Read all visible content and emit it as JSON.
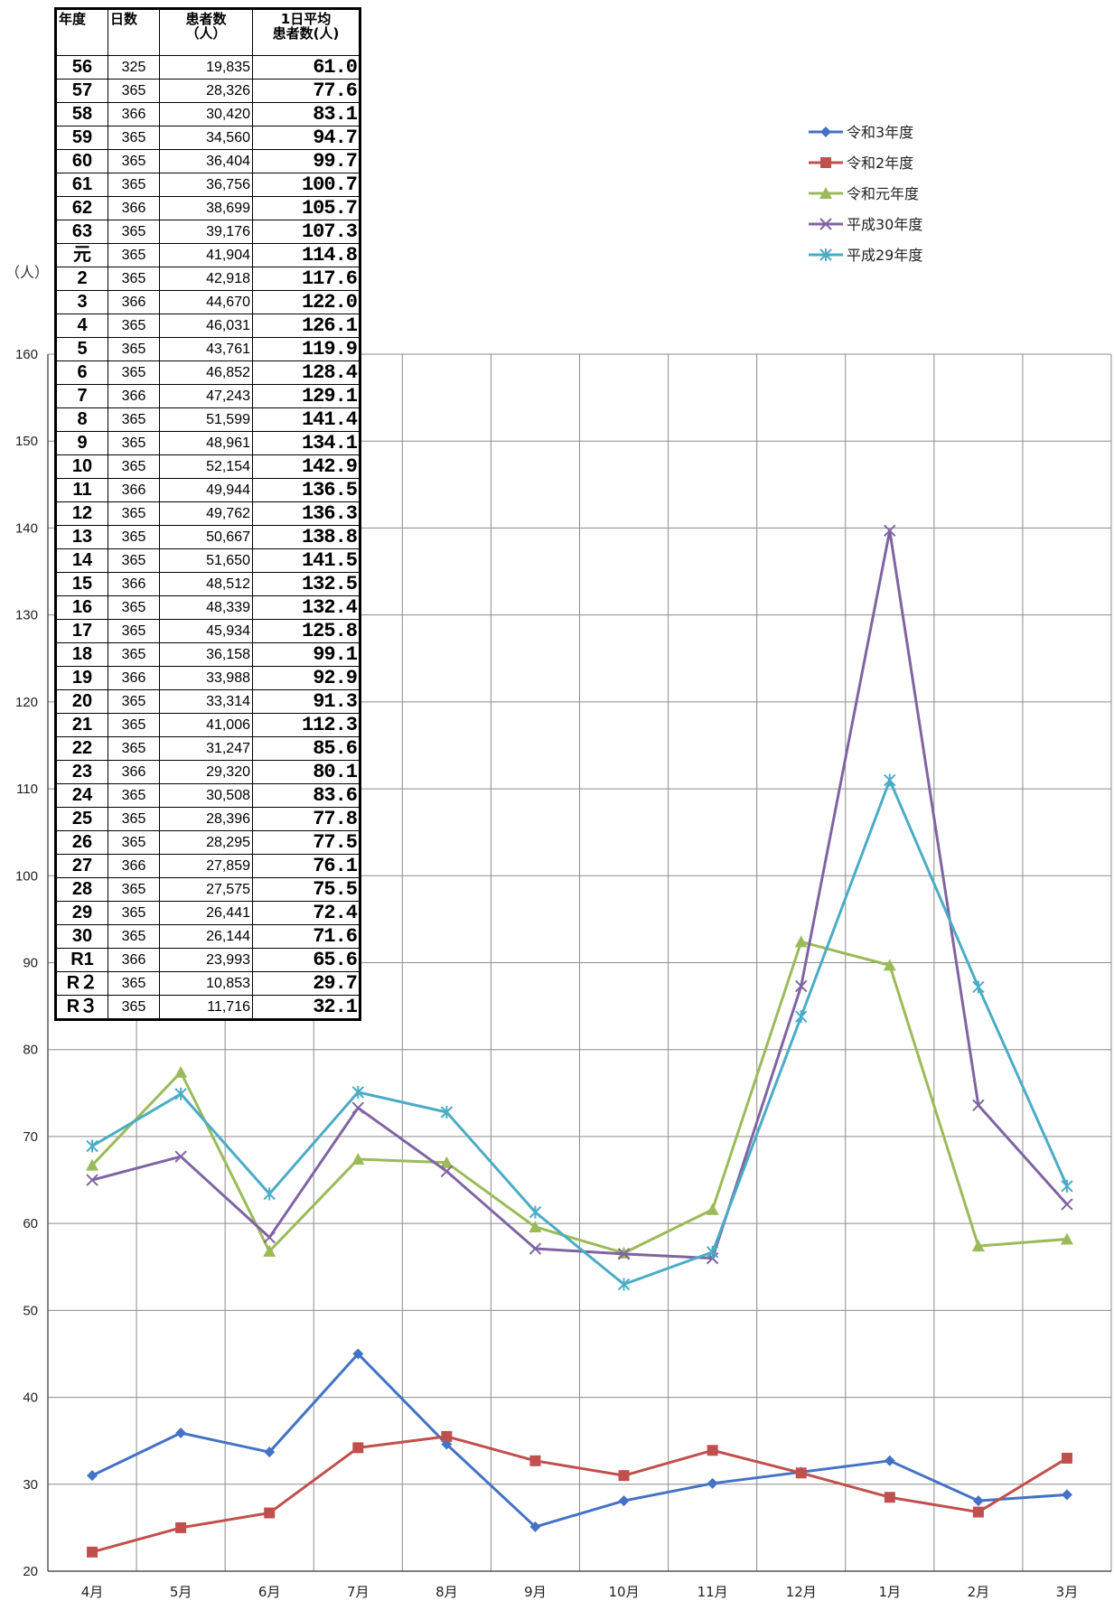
{
  "table": {
    "headers": {
      "year": "年度",
      "days": "日数",
      "patients_l1": "患者数",
      "patients_l2": "（人）",
      "avg_l1": "1日平均",
      "avg_l2": "患者数(人)"
    },
    "rows": [
      {
        "year": "56",
        "days": "325",
        "patients": "19,835",
        "avg": "61.0"
      },
      {
        "year": "57",
        "days": "365",
        "patients": "28,326",
        "avg": "77.6"
      },
      {
        "year": "58",
        "days": "366",
        "patients": "30,420",
        "avg": "83.1"
      },
      {
        "year": "59",
        "days": "365",
        "patients": "34,560",
        "avg": "94.7"
      },
      {
        "year": "60",
        "days": "365",
        "patients": "36,404",
        "avg": "99.7"
      },
      {
        "year": "61",
        "days": "365",
        "patients": "36,756",
        "avg": "100.7"
      },
      {
        "year": "62",
        "days": "366",
        "patients": "38,699",
        "avg": "105.7"
      },
      {
        "year": "63",
        "days": "365",
        "patients": "39,176",
        "avg": "107.3"
      },
      {
        "year": "元",
        "days": "365",
        "patients": "41,904",
        "avg": "114.8"
      },
      {
        "year": "2",
        "days": "365",
        "patients": "42,918",
        "avg": "117.6"
      },
      {
        "year": "3",
        "days": "366",
        "patients": "44,670",
        "avg": "122.0"
      },
      {
        "year": "4",
        "days": "365",
        "patients": "46,031",
        "avg": "126.1"
      },
      {
        "year": "5",
        "days": "365",
        "patients": "43,761",
        "avg": "119.9"
      },
      {
        "year": "6",
        "days": "365",
        "patients": "46,852",
        "avg": "128.4"
      },
      {
        "year": "7",
        "days": "366",
        "patients": "47,243",
        "avg": "129.1"
      },
      {
        "year": "8",
        "days": "365",
        "patients": "51,599",
        "avg": "141.4"
      },
      {
        "year": "9",
        "days": "365",
        "patients": "48,961",
        "avg": "134.1"
      },
      {
        "year": "10",
        "days": "365",
        "patients": "52,154",
        "avg": "142.9"
      },
      {
        "year": "11",
        "days": "366",
        "patients": "49,944",
        "avg": "136.5"
      },
      {
        "year": "12",
        "days": "365",
        "patients": "49,762",
        "avg": "136.3"
      },
      {
        "year": "13",
        "days": "365",
        "patients": "50,667",
        "avg": "138.8"
      },
      {
        "year": "14",
        "days": "365",
        "patients": "51,650",
        "avg": "141.5"
      },
      {
        "year": "15",
        "days": "366",
        "patients": "48,512",
        "avg": "132.5"
      },
      {
        "year": "16",
        "days": "365",
        "patients": "48,339",
        "avg": "132.4"
      },
      {
        "year": "17",
        "days": "365",
        "patients": "45,934",
        "avg": "125.8"
      },
      {
        "year": "18",
        "days": "365",
        "patients": "36,158",
        "avg": "99.1"
      },
      {
        "year": "19",
        "days": "366",
        "patients": "33,988",
        "avg": "92.9"
      },
      {
        "year": "20",
        "days": "365",
        "patients": "33,314",
        "avg": "91.3"
      },
      {
        "year": "21",
        "days": "365",
        "patients": "41,006",
        "avg": "112.3"
      },
      {
        "year": "22",
        "days": "365",
        "patients": "31,247",
        "avg": "85.6"
      },
      {
        "year": "23",
        "days": "366",
        "patients": "29,320",
        "avg": "80.1"
      },
      {
        "year": "24",
        "days": "365",
        "patients": "30,508",
        "avg": "83.6"
      },
      {
        "year": "25",
        "days": "365",
        "patients": "28,396",
        "avg": "77.8"
      },
      {
        "year": "26",
        "days": "365",
        "patients": "28,295",
        "avg": "77.5"
      },
      {
        "year": "27",
        "days": "366",
        "patients": "27,859",
        "avg": "76.1"
      },
      {
        "year": "28",
        "days": "365",
        "patients": "27,575",
        "avg": "75.5"
      },
      {
        "year": "29",
        "days": "365",
        "patients": "26,441",
        "avg": "72.4"
      },
      {
        "year": "30",
        "days": "365",
        "patients": "26,144",
        "avg": "71.6"
      },
      {
        "year": "R1",
        "days": "366",
        "patients": "23,993",
        "avg": "65.6"
      },
      {
        "year": "R２",
        "days": "365",
        "patients": "10,853",
        "avg": "29.7"
      },
      {
        "year": "R３",
        "days": "365",
        "patients": "11,716",
        "avg": "32.1"
      }
    ]
  },
  "chart_data": {
    "type": "line",
    "ylabel": "（人）",
    "ylim": [
      20,
      160
    ],
    "yticks": [
      20,
      30,
      40,
      50,
      60,
      70,
      80,
      90,
      100,
      110,
      120,
      130,
      140,
      150,
      160
    ],
    "categories": [
      "4月",
      "5月",
      "6月",
      "7月",
      "8月",
      "9月",
      "10月",
      "11月",
      "12月",
      "1月",
      "2月",
      "3月"
    ],
    "grid": true,
    "legend_position": "top-right",
    "series": [
      {
        "name": "令和3年度",
        "color": "#4472C4",
        "marker": "diamond",
        "values": [
          31.0,
          35.9,
          33.7,
          45.0,
          34.6,
          25.1,
          28.1,
          30.1,
          31.4,
          32.7,
          28.1,
          28.8
        ]
      },
      {
        "name": "令和2年度",
        "color": "#C0504D",
        "marker": "square",
        "values": [
          22.2,
          25.0,
          26.7,
          34.2,
          35.5,
          32.7,
          31.0,
          33.9,
          31.3,
          28.5,
          26.8,
          33.0
        ]
      },
      {
        "name": "令和元年度",
        "color": "#9BBB59",
        "marker": "triangle",
        "values": [
          66.7,
          77.4,
          56.8,
          67.4,
          67.0,
          59.6,
          56.6,
          61.6,
          92.4,
          89.7,
          57.4,
          58.2
        ]
      },
      {
        "name": "平成30年度",
        "color": "#8064A2",
        "marker": "x",
        "values": [
          65.0,
          67.7,
          58.4,
          73.3,
          66.0,
          57.1,
          56.5,
          56.0,
          87.3,
          139.7,
          73.6,
          62.2
        ]
      },
      {
        "name": "平成29年度",
        "color": "#4BACC6",
        "marker": "star",
        "values": [
          68.9,
          74.9,
          63.4,
          75.1,
          72.8,
          61.3,
          53.0,
          56.7,
          83.8,
          111.0,
          87.2,
          64.3
        ]
      }
    ]
  }
}
